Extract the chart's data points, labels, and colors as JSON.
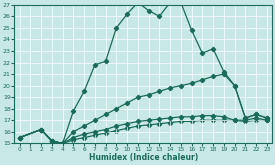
{
  "xlabel": "Humidex (Indice chaleur)",
  "bg_color": "#c8e8e8",
  "line_color": "#1a6b5a",
  "xlim": [
    -0.5,
    23.5
  ],
  "ylim": [
    15,
    27
  ],
  "xticks": [
    0,
    1,
    2,
    3,
    4,
    5,
    6,
    7,
    8,
    9,
    10,
    11,
    12,
    13,
    14,
    15,
    16,
    17,
    18,
    19,
    20,
    21,
    22,
    23
  ],
  "yticks": [
    15,
    16,
    17,
    18,
    19,
    20,
    21,
    22,
    23,
    24,
    25,
    26,
    27
  ],
  "line1_x": [
    0,
    2,
    3,
    4,
    5,
    6,
    7,
    8,
    9,
    10,
    11,
    12,
    13,
    14,
    15,
    16,
    17,
    18,
    19,
    20,
    21,
    22,
    23
  ],
  "line1_y": [
    15.5,
    16.2,
    15.2,
    15.0,
    17.8,
    19.5,
    21.8,
    22.1,
    25.0,
    26.2,
    27.2,
    26.5,
    26.0,
    27.2,
    27.2,
    24.8,
    22.8,
    23.2,
    21.2,
    20.0,
    17.2,
    17.5,
    17.2
  ],
  "line2_x": [
    0,
    2,
    3,
    4,
    5,
    6,
    7,
    8,
    9,
    10,
    11,
    12,
    13,
    14,
    15,
    16,
    17,
    18,
    19,
    20,
    21,
    22,
    23
  ],
  "line2_y": [
    15.5,
    16.2,
    15.2,
    15.0,
    16.0,
    16.5,
    17.0,
    17.5,
    18.0,
    18.5,
    19.0,
    19.2,
    19.5,
    19.8,
    20.0,
    20.2,
    20.5,
    20.8,
    21.0,
    20.0,
    17.2,
    17.5,
    17.2
  ],
  "line3_x": [
    0,
    2,
    3,
    4,
    5,
    6,
    7,
    8,
    9,
    10,
    11,
    12,
    13,
    14,
    15,
    16,
    17,
    18,
    19,
    20,
    21,
    22,
    23
  ],
  "line3_y": [
    15.5,
    16.2,
    15.2,
    15.0,
    15.5,
    15.8,
    16.0,
    16.2,
    16.5,
    16.7,
    16.9,
    17.0,
    17.1,
    17.2,
    17.3,
    17.3,
    17.4,
    17.4,
    17.3,
    17.0,
    17.0,
    17.2,
    17.0
  ],
  "line4_x": [
    0,
    2,
    3,
    4,
    5,
    6,
    7,
    8,
    9,
    10,
    11,
    12,
    13,
    14,
    15,
    16,
    17,
    18,
    19,
    20,
    21,
    22,
    23
  ],
  "line4_y": [
    15.5,
    16.2,
    15.2,
    15.0,
    15.3,
    15.5,
    15.7,
    15.9,
    16.1,
    16.3,
    16.5,
    16.6,
    16.7,
    16.8,
    16.9,
    16.9,
    17.0,
    17.0,
    17.0,
    17.0,
    16.9,
    17.0,
    17.0
  ]
}
